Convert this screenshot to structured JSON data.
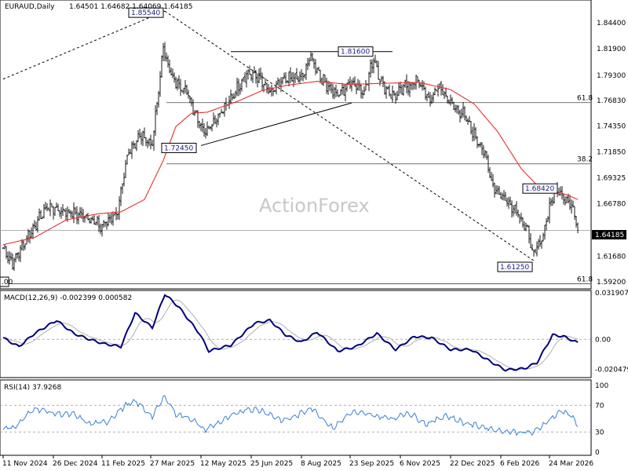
{
  "chart_data": [
    {
      "type": "candlestick",
      "title": "EURAUD,Daily",
      "ohlc_label": "1.64501 1.64682 1.64069 1.64185",
      "watermark": "ActionForex",
      "last_price": "1.64185",
      "last_value": 1.64185,
      "ylim": [
        1.585,
        1.8662
      ],
      "y_ticks": [
        "1.84400",
        "1.81900",
        "1.79300",
        "1.76830",
        "1.74350",
        "1.71850",
        "1.69325",
        "1.66780",
        "1.64185",
        "1.61680",
        "1.59200"
      ],
      "x_ticks": [
        "11 Nov 2024",
        "26 Dec 2024",
        "11 Feb 2025",
        "27 Mar 2025",
        "12 May 2025",
        "25 Jun 2025",
        "8 Aug 2025",
        "23 Sep 2025",
        "6 Nov 2025",
        "22 Dec 2025",
        "6 Feb 2026",
        "24 Mar 2026"
      ],
      "x_tick_index": [
        0,
        32,
        63,
        94,
        126,
        158,
        190,
        221,
        253,
        285,
        317,
        348
      ],
      "close_anchors": [
        {
          "i": 0,
          "v": 1.625
        },
        {
          "i": 6,
          "v": 1.61
        },
        {
          "i": 14,
          "v": 1.632
        },
        {
          "i": 28,
          "v": 1.665
        },
        {
          "i": 40,
          "v": 1.66
        },
        {
          "i": 55,
          "v": 1.655
        },
        {
          "i": 62,
          "v": 1.645
        },
        {
          "i": 73,
          "v": 1.66
        },
        {
          "i": 80,
          "v": 1.72
        },
        {
          "i": 88,
          "v": 1.735
        },
        {
          "i": 95,
          "v": 1.725
        },
        {
          "i": 102,
          "v": 1.82
        },
        {
          "i": 108,
          "v": 1.788
        },
        {
          "i": 116,
          "v": 1.78
        },
        {
          "i": 122,
          "v": 1.758
        },
        {
          "i": 128,
          "v": 1.738
        },
        {
          "i": 134,
          "v": 1.748
        },
        {
          "i": 143,
          "v": 1.765
        },
        {
          "i": 155,
          "v": 1.795
        },
        {
          "i": 162,
          "v": 1.792
        },
        {
          "i": 170,
          "v": 1.775
        },
        {
          "i": 180,
          "v": 1.79
        },
        {
          "i": 190,
          "v": 1.79
        },
        {
          "i": 196,
          "v": 1.811
        },
        {
          "i": 203,
          "v": 1.789
        },
        {
          "i": 213,
          "v": 1.773
        },
        {
          "i": 222,
          "v": 1.787
        },
        {
          "i": 230,
          "v": 1.777
        },
        {
          "i": 236,
          "v": 1.81
        },
        {
          "i": 241,
          "v": 1.785
        },
        {
          "i": 249,
          "v": 1.772
        },
        {
          "i": 256,
          "v": 1.782
        },
        {
          "i": 265,
          "v": 1.788
        },
        {
          "i": 271,
          "v": 1.768
        },
        {
          "i": 278,
          "v": 1.782
        },
        {
          "i": 285,
          "v": 1.765
        },
        {
          "i": 293,
          "v": 1.755
        },
        {
          "i": 300,
          "v": 1.735
        },
        {
          "i": 306,
          "v": 1.72
        },
        {
          "i": 312,
          "v": 1.685
        },
        {
          "i": 320,
          "v": 1.672
        },
        {
          "i": 328,
          "v": 1.66
        },
        {
          "i": 334,
          "v": 1.64
        },
        {
          "i": 338,
          "v": 1.618
        },
        {
          "i": 343,
          "v": 1.632
        },
        {
          "i": 348,
          "v": 1.665
        },
        {
          "i": 352,
          "v": 1.682
        },
        {
          "i": 357,
          "v": 1.675
        },
        {
          "i": 362,
          "v": 1.668
        },
        {
          "i": 366,
          "v": 1.642
        }
      ],
      "ma_anchors": [
        {
          "i": 0,
          "v": 1.628
        },
        {
          "i": 20,
          "v": 1.635
        },
        {
          "i": 40,
          "v": 1.652
        },
        {
          "i": 60,
          "v": 1.658
        },
        {
          "i": 75,
          "v": 1.66
        },
        {
          "i": 90,
          "v": 1.672
        },
        {
          "i": 102,
          "v": 1.71
        },
        {
          "i": 110,
          "v": 1.743
        },
        {
          "i": 120,
          "v": 1.756
        },
        {
          "i": 130,
          "v": 1.757
        },
        {
          "i": 150,
          "v": 1.768
        },
        {
          "i": 165,
          "v": 1.778
        },
        {
          "i": 180,
          "v": 1.783
        },
        {
          "i": 200,
          "v": 1.787
        },
        {
          "i": 220,
          "v": 1.784
        },
        {
          "i": 240,
          "v": 1.785
        },
        {
          "i": 265,
          "v": 1.786
        },
        {
          "i": 285,
          "v": 1.779
        },
        {
          "i": 300,
          "v": 1.765
        },
        {
          "i": 315,
          "v": 1.738
        },
        {
          "i": 330,
          "v": 1.702
        },
        {
          "i": 340,
          "v": 1.686
        },
        {
          "i": 350,
          "v": 1.681
        },
        {
          "i": 360,
          "v": 1.676
        },
        {
          "i": 366,
          "v": 1.672
        }
      ],
      "fib_levels": [
        {
          "label": "61.8",
          "value": 1.7663
        },
        {
          "label": "38.2",
          "value": 1.7067
        },
        {
          "label": "61.8",
          "value": 1.59
        }
      ],
      "annotations": [
        {
          "label": "1.85540",
          "i": 103,
          "value": 1.8554
        },
        {
          "label": "1.81600",
          "i": 196,
          "value": 1.816
        },
        {
          "label": "1.72450",
          "i": 126,
          "value": 1.7245
        },
        {
          "label": "1.68420",
          "i": 352,
          "value": 1.6842
        },
        {
          "label": "1.61250",
          "i": 338,
          "value": 1.6125
        }
      ],
      "trendlines": [
        {
          "style": "dotted",
          "from": {
            "i": 0,
            "v": 1.7892
          },
          "to": {
            "i": 103,
            "v": 1.8554
          }
        },
        {
          "style": "dotted",
          "from": {
            "i": 103,
            "v": 1.8554
          },
          "to": {
            "i": 338,
            "v": 1.6125
          }
        },
        {
          "style": "solid",
          "from": {
            "i": 126,
            "v": 1.7245
          },
          "to": {
            "i": 222,
            "v": 1.766
          }
        },
        {
          "style": "solid",
          "from": {
            "i": 145,
            "v": 1.816
          },
          "to": {
            "i": 248,
            "v": 1.816
          }
        }
      ]
    },
    {
      "type": "line",
      "title": "MACD(12,26,9) -0.002399 0.000582",
      "y_ticks": [
        "0.031907",
        "0.00",
        "-0.020479"
      ],
      "ylim": [
        -0.0262,
        0.0335
      ],
      "macd_anchors": [
        {
          "i": 0,
          "v": 0.001
        },
        {
          "i": 10,
          "v": -0.005
        },
        {
          "i": 20,
          "v": 0.004
        },
        {
          "i": 34,
          "v": 0.013
        },
        {
          "i": 45,
          "v": 0.004
        },
        {
          "i": 55,
          "v": 0.0
        },
        {
          "i": 64,
          "v": -0.003
        },
        {
          "i": 75,
          "v": -0.005
        },
        {
          "i": 84,
          "v": 0.018
        },
        {
          "i": 95,
          "v": 0.008
        },
        {
          "i": 103,
          "v": 0.031
        },
        {
          "i": 112,
          "v": 0.022
        },
        {
          "i": 125,
          "v": 0.004
        },
        {
          "i": 131,
          "v": -0.008
        },
        {
          "i": 145,
          "v": -0.004
        },
        {
          "i": 160,
          "v": 0.011
        },
        {
          "i": 170,
          "v": 0.013
        },
        {
          "i": 180,
          "v": 0.003
        },
        {
          "i": 190,
          "v": -0.002
        },
        {
          "i": 200,
          "v": 0.005
        },
        {
          "i": 213,
          "v": -0.008
        },
        {
          "i": 225,
          "v": -0.005
        },
        {
          "i": 238,
          "v": 0.004
        },
        {
          "i": 250,
          "v": -0.007
        },
        {
          "i": 262,
          "v": 0.002
        },
        {
          "i": 273,
          "v": 0.001
        },
        {
          "i": 285,
          "v": -0.007
        },
        {
          "i": 298,
          "v": -0.007
        },
        {
          "i": 310,
          "v": -0.015
        },
        {
          "i": 320,
          "v": -0.021
        },
        {
          "i": 332,
          "v": -0.02
        },
        {
          "i": 340,
          "v": -0.016
        },
        {
          "i": 350,
          "v": 0.003
        },
        {
          "i": 357,
          "v": 0.002
        },
        {
          "i": 366,
          "v": -0.0024
        }
      ],
      "signal_lag": 5
    },
    {
      "type": "line",
      "title": "RSI(14) 37.9268",
      "y_ticks": [
        "100",
        "70",
        "30",
        "0"
      ],
      "ylim": [
        0,
        100
      ],
      "levels": [
        70,
        30
      ],
      "rsi_anchors": [
        {
          "i": 0,
          "v": 35
        },
        {
          "i": 8,
          "v": 38
        },
        {
          "i": 20,
          "v": 66
        },
        {
          "i": 32,
          "v": 58
        },
        {
          "i": 45,
          "v": 56
        },
        {
          "i": 55,
          "v": 42
        },
        {
          "i": 66,
          "v": 45
        },
        {
          "i": 78,
          "v": 70
        },
        {
          "i": 85,
          "v": 75
        },
        {
          "i": 95,
          "v": 53
        },
        {
          "i": 103,
          "v": 84
        },
        {
          "i": 110,
          "v": 57
        },
        {
          "i": 120,
          "v": 50
        },
        {
          "i": 128,
          "v": 33
        },
        {
          "i": 140,
          "v": 47
        },
        {
          "i": 155,
          "v": 65
        },
        {
          "i": 165,
          "v": 62
        },
        {
          "i": 178,
          "v": 47
        },
        {
          "i": 188,
          "v": 55
        },
        {
          "i": 196,
          "v": 67
        },
        {
          "i": 210,
          "v": 36
        },
        {
          "i": 222,
          "v": 60
        },
        {
          "i": 235,
          "v": 55
        },
        {
          "i": 248,
          "v": 50
        },
        {
          "i": 258,
          "v": 59
        },
        {
          "i": 270,
          "v": 42
        },
        {
          "i": 282,
          "v": 55
        },
        {
          "i": 293,
          "v": 44
        },
        {
          "i": 305,
          "v": 38
        },
        {
          "i": 316,
          "v": 32
        },
        {
          "i": 326,
          "v": 30
        },
        {
          "i": 338,
          "v": 29
        },
        {
          "i": 346,
          "v": 45
        },
        {
          "i": 356,
          "v": 62
        },
        {
          "i": 362,
          "v": 55
        },
        {
          "i": 366,
          "v": 37.9
        }
      ]
    }
  ]
}
